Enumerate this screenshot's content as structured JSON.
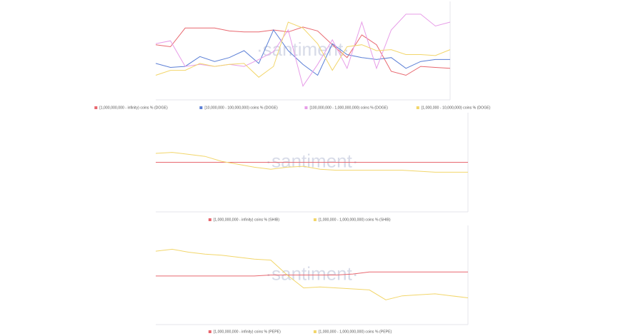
{
  "chart_data": [
    {
      "type": "line",
      "watermark": "·santiment·",
      "ylim": [
        0,
        100
      ],
      "series": [
        {
          "name": "[1,000,000,000 - infinity) coins % (DOGE)",
          "color": "#e8676f",
          "values": [
            56,
            54,
            73,
            73,
            73,
            70,
            69,
            69,
            71,
            69,
            74,
            70,
            56,
            43,
            66,
            56,
            29,
            25,
            34,
            33,
            32
          ]
        },
        {
          "name": "[10,000,000 - 100,000,000) coins % (DOGE)",
          "color": "#5b7fd6",
          "values": [
            37,
            33,
            34,
            44,
            39,
            43,
            50,
            37,
            71,
            50,
            36,
            25,
            57,
            46,
            43,
            41,
            43,
            32,
            39,
            41,
            41
          ]
        },
        {
          "name": "[100,000,000 - 1,000,000,000) coins % (DOGE)",
          "color": "#e79de8",
          "values": [
            57,
            60,
            34,
            36,
            34,
            36,
            34,
            41,
            49,
            71,
            14,
            36,
            61,
            32,
            79,
            32,
            71,
            87,
            87,
            75,
            79
          ]
        },
        {
          "name": "[1,000,000 - 10,000,000) coins % (DOGE)",
          "color": "#f2d66b",
          "values": [
            25,
            30,
            30,
            37,
            34,
            36,
            37,
            23,
            34,
            79,
            73,
            57,
            30,
            54,
            56,
            50,
            51,
            46,
            46,
            45,
            51
          ]
        }
      ]
    },
    {
      "type": "line",
      "watermark": "·santiment·",
      "ylim": [
        0,
        100
      ],
      "series": [
        {
          "name": "[1,000,000,000 - infinity) coins % (SHIB)",
          "color": "#e8676f",
          "values": [
            50,
            50,
            50,
            50,
            50,
            50,
            50,
            50,
            50,
            50,
            50,
            50,
            50,
            50,
            50,
            50,
            50,
            50,
            50,
            50
          ]
        },
        {
          "name": "[1,000,000 - 1,000,000,000) coins % (SHIB)",
          "color": "#f2d66b",
          "values": [
            59,
            60,
            58,
            56,
            51,
            48,
            45,
            43,
            45,
            46,
            43,
            42,
            42,
            42,
            42,
            42,
            41,
            40,
            40,
            40
          ]
        }
      ]
    },
    {
      "type": "line",
      "watermark": "·santiment·",
      "ylim": [
        0,
        100
      ],
      "series": [
        {
          "name": "[1,000,000,000 - infinity) coins % (PEPE)",
          "color": "#e8676f",
          "values": [
            49,
            49,
            49,
            49,
            49,
            49,
            49,
            50,
            50,
            50,
            50,
            50,
            51,
            53,
            53,
            53,
            53,
            53,
            53,
            53
          ]
        },
        {
          "name": "[1,000,000 - 1,000,000,000) coins % (PEPE)",
          "color": "#f2d66b",
          "values": [
            74,
            76,
            73,
            71,
            70,
            68,
            66,
            65,
            50,
            37,
            38,
            37,
            36,
            35,
            25,
            29,
            30,
            31,
            29,
            27
          ]
        }
      ]
    }
  ]
}
